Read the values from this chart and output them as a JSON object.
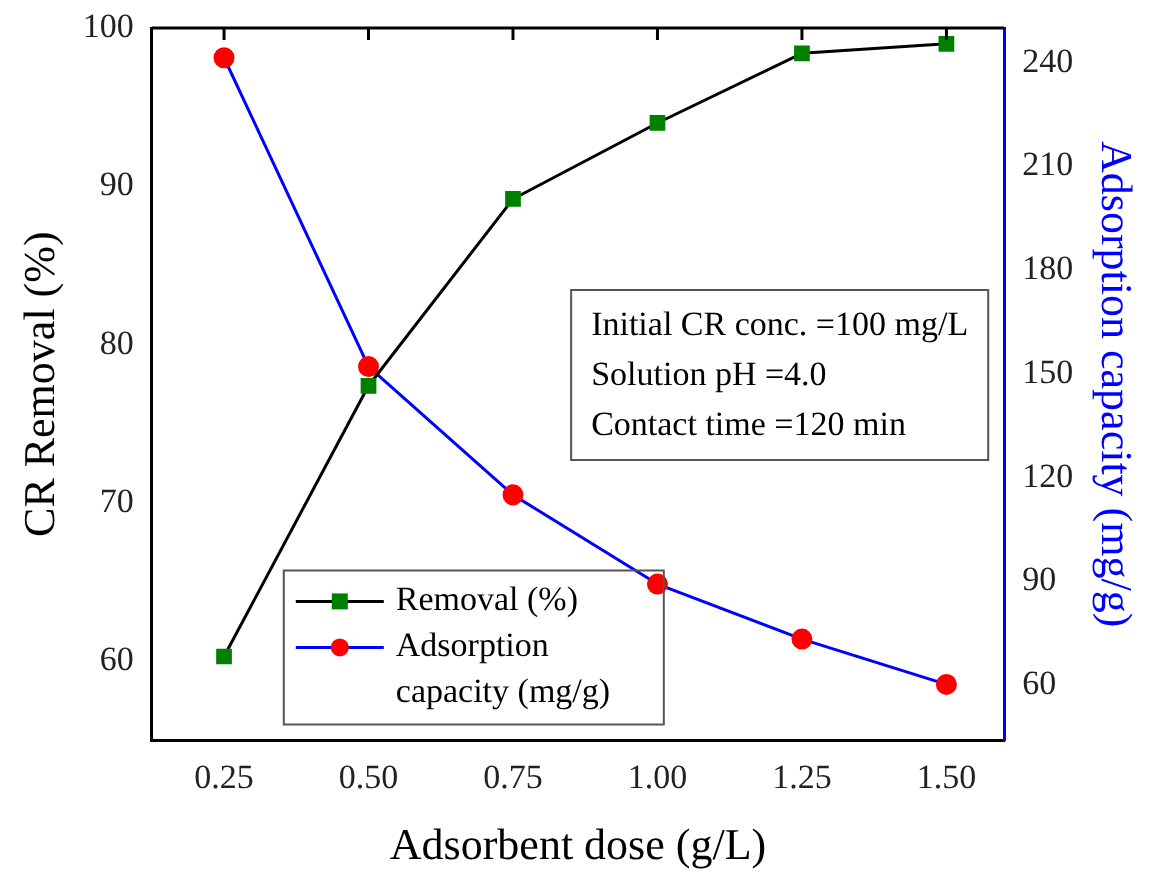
{
  "chart_data": {
    "type": "line",
    "xlabel": "Adsorbent dose (g/L)",
    "ylabel": "CR Removal (%)",
    "y2label": "Adsorption capacity (mg/g)",
    "x": [
      0.25,
      0.5,
      0.75,
      1.0,
      1.25,
      1.5
    ],
    "xlim": [
      0.125,
      1.6
    ],
    "xticks": [
      {
        "value": 0.25,
        "label": "0.25"
      },
      {
        "value": 0.5,
        "label": "0.50"
      },
      {
        "value": 0.75,
        "label": "0.75"
      },
      {
        "value": 1.0,
        "label": "1.00"
      },
      {
        "value": 1.25,
        "label": "1.25"
      },
      {
        "value": 1.5,
        "label": "1.50"
      }
    ],
    "ylim": [
      55,
      100
    ],
    "yticks": [
      60,
      70,
      80,
      90,
      100
    ],
    "y2lim": [
      44,
      250
    ],
    "y2ticks": [
      60,
      90,
      120,
      150,
      180,
      210,
      240
    ],
    "series": [
      {
        "name": "Removal (%)",
        "color": "#000000",
        "colors": [
          "#008000",
          "#008000",
          "#008000",
          "#008000",
          "#008000",
          "#008000"
        ],
        "marker": "square",
        "values": [
          60.3,
          77.4,
          89.2,
          94.0,
          98.4,
          99.0
        ]
      },
      {
        "name": "Adsorption capacity (mg/g)",
        "color": "#0000ff",
        "colors": [
          "#ff0000",
          "#ff0000",
          "#ff0000",
          "#ff0000",
          "#ff0000",
          "#ff0000"
        ],
        "marker": "circle",
        "axis": "y2",
        "values": [
          241.4,
          152.1,
          115.0,
          89.2,
          73.3,
          60.2
        ]
      }
    ],
    "legend": "bottom left",
    "grid": false,
    "line_style": "solid",
    "annotations": [
      "Initial CR conc. =100 mg/L",
      "Solution pH =4.0",
      "Contact time =120 min"
    ]
  }
}
